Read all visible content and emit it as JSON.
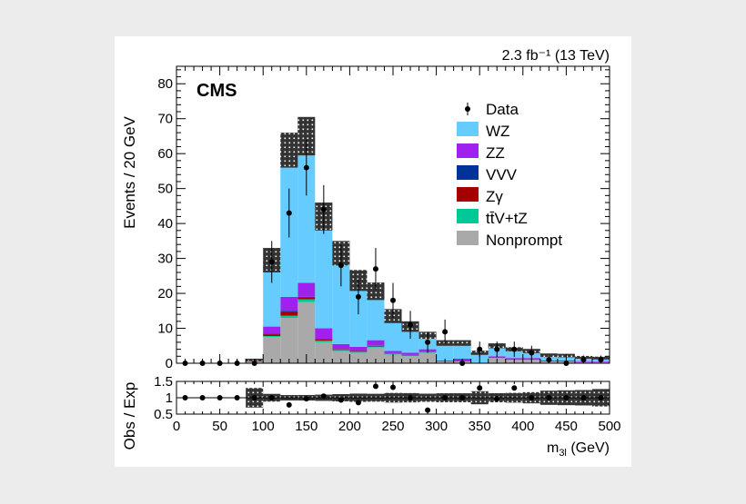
{
  "lumi_label": "2.3 fb⁻¹ (13 TeV)",
  "experiment_label": "CMS",
  "chart_data": [
    {
      "type": "bar",
      "stacked": true,
      "xlabel": "m3l (GeV)",
      "ylabel": "Events / 20 GeV",
      "xlim": [
        0,
        500
      ],
      "ylim": [
        0,
        85
      ],
      "xticks": [
        0,
        50,
        100,
        150,
        200,
        250,
        300,
        350,
        400,
        450,
        500
      ],
      "yticks": [
        0,
        10,
        20,
        30,
        40,
        50,
        60,
        70,
        80
      ],
      "bin_edges": [
        0,
        20,
        40,
        60,
        80,
        100,
        120,
        140,
        160,
        180,
        200,
        220,
        240,
        260,
        280,
        300,
        320,
        340,
        360,
        380,
        400,
        420,
        440,
        460,
        480,
        500
      ],
      "series": [
        {
          "name": "Nonprompt",
          "color": "#a9a9a9",
          "values": [
            0,
            0,
            0,
            0,
            0.5,
            7.5,
            13,
            17.5,
            6,
            3.5,
            3,
            4.5,
            2.5,
            2,
            3,
            0.5,
            0.5,
            0,
            1.5,
            1,
            1,
            0.5,
            0.5,
            0.3,
            0.3
          ]
        },
        {
          "name": "tt̄V+tZ",
          "color": "#00c896",
          "values": [
            0,
            0,
            0,
            0,
            0,
            0.3,
            0.6,
            0.8,
            0.5,
            0.3,
            0.3,
            0.3,
            0.2,
            0.2,
            0.2,
            0,
            0,
            0,
            0,
            0,
            0,
            0,
            0,
            0,
            0
          ]
        },
        {
          "name": "Zγ",
          "color": "#a40000",
          "values": [
            0,
            0,
            0,
            0,
            0.2,
            0.5,
            1.2,
            0.5,
            0.3,
            0.2,
            0.2,
            0.2,
            0.1,
            0.1,
            0.1,
            0,
            0,
            0,
            0,
            0,
            0,
            0,
            0,
            0,
            0
          ]
        },
        {
          "name": "VVV",
          "color": "#003399",
          "values": [
            0,
            0,
            0,
            0,
            0,
            0.2,
            0.2,
            0.2,
            0.2,
            0.1,
            0.1,
            0.1,
            0.1,
            0.1,
            0.1,
            0,
            0,
            0,
            0,
            0,
            0,
            0,
            0,
            0,
            0
          ]
        },
        {
          "name": "ZZ",
          "color": "#a020f0",
          "values": [
            0,
            0,
            0,
            0,
            0.3,
            2,
            4,
            4,
            3,
            1.4,
            1.1,
            1.5,
            0.6,
            0.6,
            0.6,
            0.3,
            0.8,
            0,
            0.5,
            0.5,
            0.5,
            0.3,
            0.3,
            0.2,
            0.2
          ]
        },
        {
          "name": "WZ",
          "color": "#66ccff",
          "values": [
            0,
            0,
            0,
            0,
            0,
            19,
            42,
            42,
            32,
            26,
            19,
            14,
            10,
            7.5,
            4,
            5,
            4.5,
            3,
            3,
            2.5,
            2,
            1.5,
            1.4,
            1.2,
            1
          ]
        }
      ],
      "uncertainty": [
        0,
        0,
        0,
        0,
        0.3,
        3.5,
        5,
        5.5,
        4,
        3.5,
        3,
        2.5,
        2,
        1.5,
        1,
        0.8,
        0.8,
        0.6,
        0.7,
        0.6,
        0.6,
        0.5,
        0.5,
        0.4,
        0.4
      ],
      "data": {
        "name": "Data",
        "x": [
          10,
          30,
          50,
          70,
          90,
          110,
          130,
          150,
          170,
          190,
          210,
          230,
          250,
          270,
          290,
          310,
          330,
          350,
          370,
          390,
          410,
          430,
          450,
          470,
          490
        ],
        "y": [
          0,
          0,
          0,
          0,
          0,
          29,
          43,
          56,
          44,
          28,
          19,
          27,
          18,
          11,
          6,
          9,
          0,
          4,
          4,
          4,
          3,
          1,
          0,
          1,
          1
        ],
        "yerr": [
          1.1,
          1.1,
          1.1,
          1.1,
          1.1,
          6,
          7,
          8,
          7,
          6,
          5,
          6,
          5,
          4,
          3,
          3.5,
          1.1,
          2.2,
          2.2,
          2.2,
          2,
          1.2,
          1.1,
          1.2,
          1.2
        ]
      }
    },
    {
      "type": "scatter",
      "ylabel": "Obs / Exp",
      "xlabel": "m3l (GeV)",
      "xlim": [
        0,
        500
      ],
      "ylim": [
        0.5,
        1.5
      ],
      "yticks": [
        0.5,
        1,
        1.5
      ],
      "x": [
        10,
        30,
        50,
        70,
        90,
        110,
        130,
        150,
        170,
        190,
        210,
        230,
        250,
        270,
        290,
        310,
        330,
        350,
        370,
        390,
        410,
        430,
        450,
        470,
        490
      ],
      "y": [
        1.0,
        1.0,
        1.0,
        1.0,
        1.0,
        1.0,
        0.78,
        0.97,
        1.05,
        0.93,
        0.85,
        1.35,
        1.32,
        1.0,
        0.62,
        1.0,
        1.0,
        1.3,
        0.97,
        1.3,
        1.0,
        1.0,
        1.0,
        1.0,
        1.0
      ]
    }
  ]
}
